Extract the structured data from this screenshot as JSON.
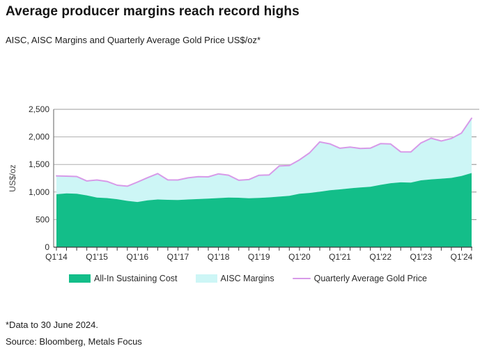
{
  "page": {
    "title": "Average producer margins reach record highs",
    "subtitle": "AISC, AISC Margins and Quarterly Average Gold Price US$/oz*",
    "footnote": "*Data to 30 June 2024.",
    "source": "Source: Bloomberg, Metals Focus"
  },
  "colors": {
    "aisc_fill": "#13BE89",
    "margins_fill": "#CDF6F6",
    "gold_line": "#D79AE8",
    "grid": "#AFAFAF",
    "axis": "#3C3C3C",
    "left_axis": "#7A7A7A",
    "right_tick": "#8C8C8C",
    "label_text": "#2B2B2B"
  },
  "chart_data": {
    "type": "area",
    "title": "AISC, AISC Margins and Quarterly Average Gold Price US$/oz*",
    "xlabel": "",
    "ylabel": "US$/oz",
    "ylim": [
      0,
      2500
    ],
    "yticks": [
      0,
      500,
      1000,
      1500,
      2000,
      2500
    ],
    "ytick_labels": [
      "0",
      "500",
      "1,000",
      "1,500",
      "2,000",
      "2,500"
    ],
    "grid": "horizontal",
    "legend_position": "bottom",
    "x_year_label_every": 4,
    "x_tick_labels": [
      "Q1'14",
      "Q1'15",
      "Q1'16",
      "Q1'17",
      "Q1'18",
      "Q1'19",
      "Q1'20",
      "Q1'21",
      "Q1'22",
      "Q1'23",
      "Q1'24"
    ],
    "categories": [
      "Q1'14",
      "Q2'14",
      "Q3'14",
      "Q4'14",
      "Q1'15",
      "Q2'15",
      "Q3'15",
      "Q4'15",
      "Q1'16",
      "Q2'16",
      "Q3'16",
      "Q4'16",
      "Q1'17",
      "Q2'17",
      "Q3'17",
      "Q4'17",
      "Q1'18",
      "Q2'18",
      "Q3'18",
      "Q4'18",
      "Q1'19",
      "Q2'19",
      "Q3'19",
      "Q4'19",
      "Q1'20",
      "Q2'20",
      "Q3'20",
      "Q4'20",
      "Q1'21",
      "Q2'21",
      "Q3'21",
      "Q4'21",
      "Q1'22",
      "Q2'22",
      "Q3'22",
      "Q4'22",
      "Q1'23",
      "Q2'23",
      "Q3'23",
      "Q4'23",
      "Q1'24",
      "Q2'24"
    ],
    "series": [
      {
        "name": "All-In Sustaining Cost",
        "type": "area",
        "values": [
          960,
          975,
          970,
          940,
          900,
          890,
          870,
          840,
          820,
          850,
          865,
          858,
          855,
          865,
          872,
          880,
          890,
          900,
          897,
          888,
          893,
          903,
          917,
          930,
          970,
          984,
          1005,
          1032,
          1048,
          1067,
          1083,
          1095,
          1130,
          1160,
          1176,
          1170,
          1212,
          1230,
          1242,
          1256,
          1292,
          1345
        ]
      },
      {
        "name": "AISC Margins",
        "type": "area-stacked",
        "values": [
          333,
          313,
          312,
          261,
          318,
          302,
          254,
          266,
          361,
          410,
          470,
          362,
          364,
          392,
          406,
          395,
          439,
          406,
          316,
          338,
          411,
          406,
          555,
          551,
          613,
          727,
          904,
          842,
          746,
          749,
          707,
          700,
          747,
          711,
          553,
          556,
          678,
          746,
          684,
          715,
          778,
          993
        ]
      },
      {
        "name": "Quarterly Average Gold Price",
        "type": "line",
        "values": [
          1293,
          1288,
          1282,
          1201,
          1218,
          1192,
          1124,
          1106,
          1181,
          1260,
          1335,
          1220,
          1219,
          1257,
          1278,
          1275,
          1329,
          1306,
          1213,
          1226,
          1304,
          1309,
          1472,
          1481,
          1583,
          1711,
          1909,
          1874,
          1794,
          1816,
          1790,
          1795,
          1877,
          1871,
          1729,
          1726,
          1890,
          1976,
          1926,
          1971,
          2070,
          2338
        ]
      }
    ]
  }
}
